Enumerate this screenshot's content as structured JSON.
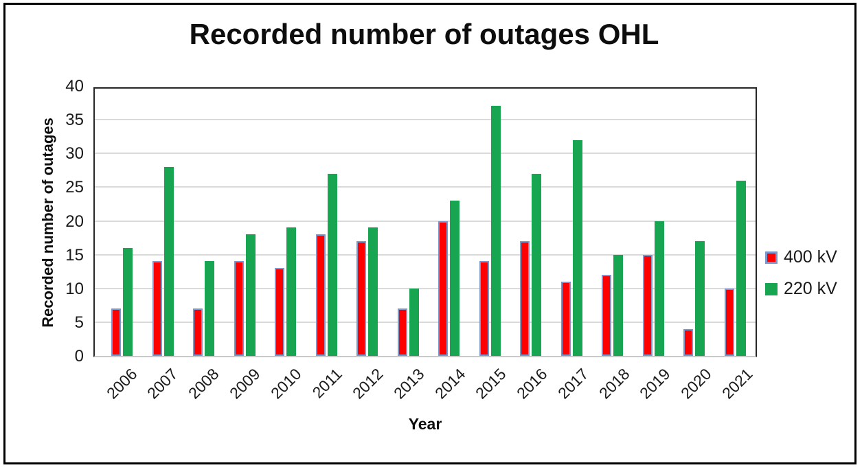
{
  "title": "Recorded number of outages OHL",
  "chart_data": {
    "type": "bar",
    "title": "Recorded number of outages OHL",
    "xlabel": "Year",
    "ylabel": "Recorded number of outages",
    "categories": [
      "2006",
      "2007",
      "2008",
      "2009",
      "2010",
      "2011",
      "2012",
      "2013",
      "2014",
      "2015",
      "2016",
      "2017",
      "2018",
      "2019",
      "2020",
      "2021"
    ],
    "series": [
      {
        "name": "400 kV",
        "color": "#fe0000",
        "border_color": "#7c98ce",
        "values": [
          7,
          14,
          7,
          14,
          13,
          18,
          17,
          7,
          20,
          14,
          17,
          11,
          12,
          15,
          4,
          10
        ]
      },
      {
        "name": "220 kV",
        "color": "#17a551",
        "border_color": "#17a551",
        "values": [
          16,
          28,
          14,
          18,
          19,
          27,
          19,
          10,
          23,
          37,
          27,
          32,
          15,
          20,
          17,
          26
        ]
      }
    ],
    "ylim": [
      0,
      40
    ],
    "ytick_step": 5,
    "yticks": [
      0,
      5,
      10,
      15,
      20,
      25,
      30,
      35,
      40
    ],
    "grid": true,
    "legend_position": "right"
  },
  "colors": {
    "gridline": "#dadada",
    "plot_border": "#262626",
    "axis_bottom": "#c9c9c9",
    "outer_border": "#000000",
    "background": "#ffffff"
  }
}
